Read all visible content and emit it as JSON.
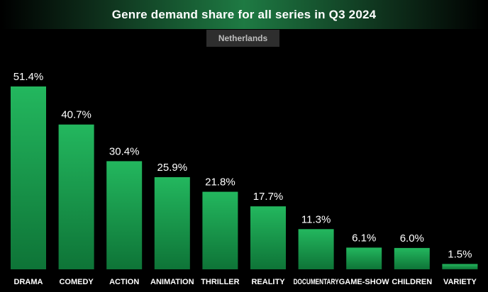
{
  "title": "Genre demand share for all series in Q3 2024",
  "subtitle": "Netherlands",
  "chart_data": {
    "type": "bar",
    "title": "Genre demand share for all series in Q3 2024",
    "subtitle": "Netherlands",
    "categories": [
      "DRAMA",
      "COMEDY",
      "ACTION",
      "ANIMATION",
      "THRILLER",
      "REALITY",
      "DOCUMENTARY",
      "GAME-SHOW",
      "CHILDREN",
      "VARIETY"
    ],
    "values": [
      51.4,
      40.7,
      30.4,
      25.9,
      21.8,
      17.7,
      11.3,
      6.1,
      6.0,
      1.5
    ],
    "value_labels": [
      "51.4%",
      "40.7%",
      "30.4%",
      "25.9%",
      "21.8%",
      "17.7%",
      "11.3%",
      "6.1%",
      "6.0%",
      "1.5%"
    ],
    "xlabel": "",
    "ylabel": "",
    "unit": "%",
    "ylim": [
      0,
      51.4
    ],
    "grid": false,
    "legend": "none",
    "colors": {
      "bar_top": "#22b35c",
      "bar_bottom": "#0f7a3a",
      "background": "#000000"
    }
  }
}
